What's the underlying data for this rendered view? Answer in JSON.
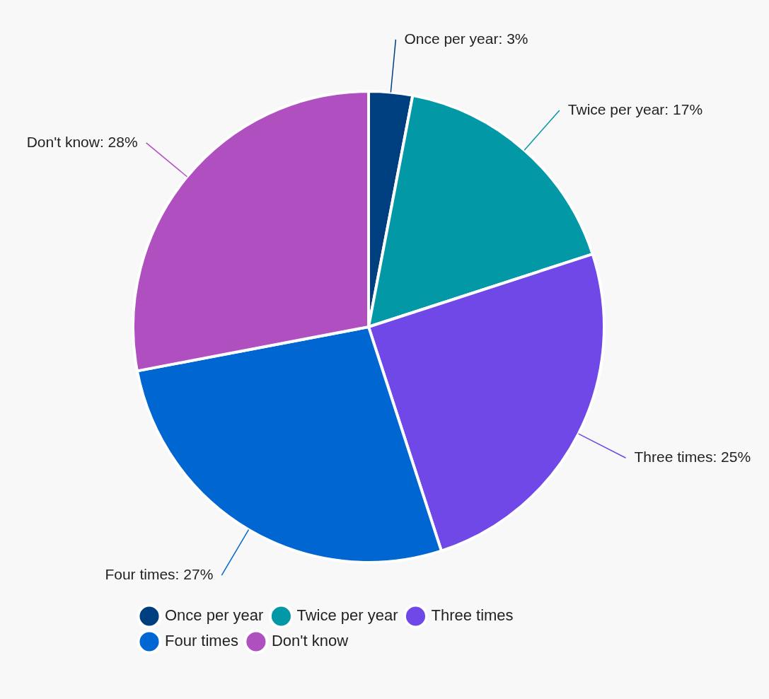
{
  "chart_data": {
    "type": "pie",
    "categories": [
      "Once per year",
      "Twice per year",
      "Three times",
      "Four times",
      "Don't know"
    ],
    "values": [
      3,
      17,
      25,
      27,
      28
    ],
    "colors": [
      "#003f7f",
      "#0398a6",
      "#7048e8",
      "#0066d1",
      "#b04fbf"
    ],
    "value_labels": [
      "Once per year: 3%",
      "Twice per year: 17%",
      "Three times: 25%",
      "Four times: 27%",
      "Don't know: 28%"
    ],
    "legend": "bottom"
  }
}
